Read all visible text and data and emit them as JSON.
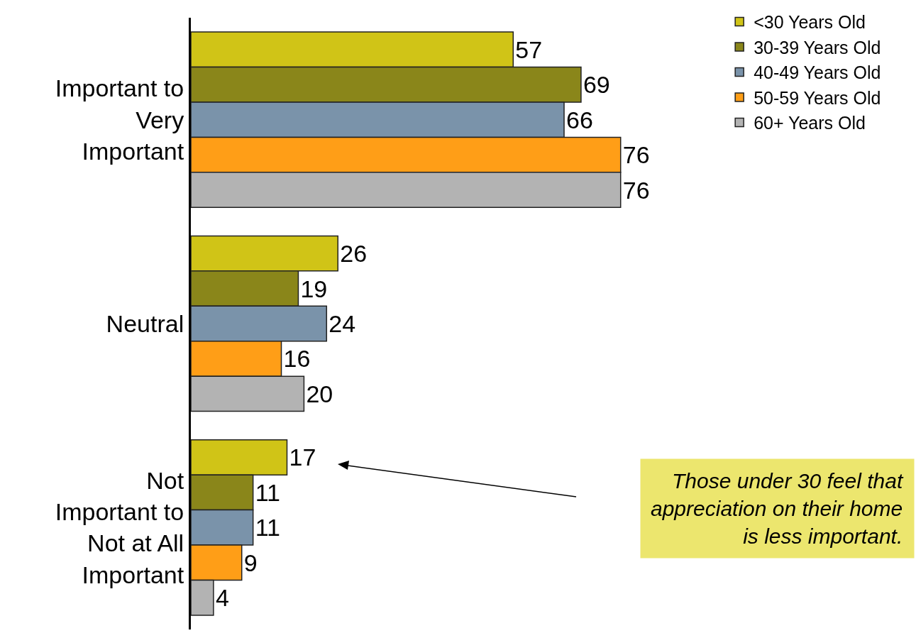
{
  "chart_data": {
    "type": "bar",
    "orientation": "horizontal",
    "categories": [
      "Important to Very Important",
      "Neutral",
      "Not Important to Not at All Important"
    ],
    "series": [
      {
        "name": "<30 Years Old",
        "color": "#d0c417",
        "values": [
          57,
          26,
          17
        ]
      },
      {
        "name": "30-39 Years Old",
        "color": "#8a861a",
        "values": [
          69,
          19,
          11
        ]
      },
      {
        "name": "40-49 Years Old",
        "color": "#7a93aa",
        "values": [
          66,
          24,
          11
        ]
      },
      {
        "name": "50-59 Years Old",
        "color": "#ff9e17",
        "values": [
          76,
          16,
          9
        ]
      },
      {
        "name": "60+ Years Old",
        "color": "#b3b3b3",
        "values": [
          76,
          20,
          4
        ]
      }
    ],
    "data_labels": true,
    "legend": "top right",
    "grid": false,
    "annotations": [
      "Those under 30 feel that appreciation on their home is less important."
    ]
  }
}
